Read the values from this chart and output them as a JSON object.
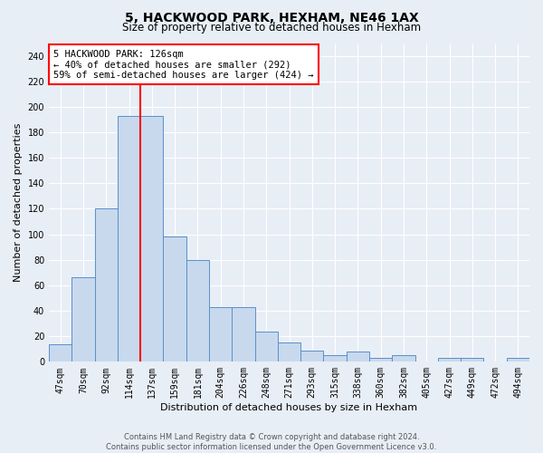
{
  "title1": "5, HACKWOOD PARK, HEXHAM, NE46 1AX",
  "title2": "Size of property relative to detached houses in Hexham",
  "xlabel": "Distribution of detached houses by size in Hexham",
  "ylabel": "Number of detached properties",
  "categories": [
    "47sqm",
    "70sqm",
    "92sqm",
    "114sqm",
    "137sqm",
    "159sqm",
    "181sqm",
    "204sqm",
    "226sqm",
    "248sqm",
    "271sqm",
    "293sqm",
    "315sqm",
    "338sqm",
    "360sqm",
    "382sqm",
    "405sqm",
    "427sqm",
    "449sqm",
    "472sqm",
    "494sqm"
  ],
  "values": [
    14,
    66,
    120,
    193,
    193,
    98,
    80,
    43,
    43,
    24,
    15,
    9,
    5,
    8,
    3,
    5,
    0,
    3,
    3,
    0,
    3
  ],
  "bar_color": "#c8d9ed",
  "bar_edge_color": "#5b8fc9",
  "property_line_x": 3.5,
  "annotation_text": "5 HACKWOOD PARK: 126sqm\n← 40% of detached houses are smaller (292)\n59% of semi-detached houses are larger (424) →",
  "annotation_box_color": "white",
  "annotation_box_edge": "red",
  "vline_color": "red",
  "footer1": "Contains HM Land Registry data © Crown copyright and database right 2024.",
  "footer2": "Contains public sector information licensed under the Open Government Licence v3.0.",
  "background_color": "#e8eef6",
  "ylim": [
    0,
    250
  ],
  "yticks": [
    0,
    20,
    40,
    60,
    80,
    100,
    120,
    140,
    160,
    180,
    200,
    220,
    240
  ],
  "title1_fontsize": 10,
  "title2_fontsize": 8.5,
  "ylabel_fontsize": 8,
  "xlabel_fontsize": 8,
  "tick_fontsize": 7,
  "annot_fontsize": 7.5,
  "footer_fontsize": 6
}
